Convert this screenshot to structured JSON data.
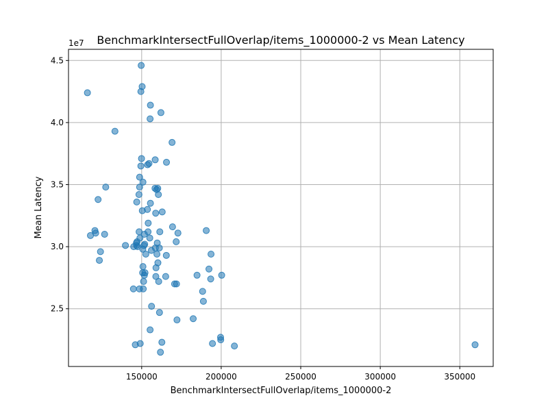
{
  "chart_data": {
    "type": "scatter",
    "title": "BenchmarkIntersectFullOverlap/items_1000000-2 vs Mean Latency",
    "xlabel": "BenchmarkIntersectFullOverlap/items_1000000-2",
    "ylabel": "Mean Latency",
    "y_offset_label": "1e7",
    "xlim": [
      104000,
      371000
    ],
    "ylim": [
      20350000,
      45900000
    ],
    "x_ticks": [
      150000,
      200000,
      250000,
      300000,
      350000
    ],
    "x_tick_labels": [
      "150000",
      "200000",
      "250000",
      "300000",
      "350000"
    ],
    "y_ticks": [
      25000000,
      30000000,
      35000000,
      40000000,
      45000000
    ],
    "y_tick_labels": [
      "2.5",
      "3.0",
      "3.5",
      "4.0",
      "4.5"
    ],
    "grid": true,
    "marker_color": "#1f77b4",
    "marker_alpha": 0.55,
    "points": [
      [
        149700,
        44600000
      ],
      [
        150300,
        42900000
      ],
      [
        115900,
        42400000
      ],
      [
        149500,
        42500000
      ],
      [
        155500,
        41400000
      ],
      [
        162100,
        40800000
      ],
      [
        155300,
        40300000
      ],
      [
        133200,
        39300000
      ],
      [
        169100,
        38400000
      ],
      [
        149900,
        37100000
      ],
      [
        158500,
        37000000
      ],
      [
        154600,
        36700000
      ],
      [
        165600,
        36800000
      ],
      [
        153700,
        36600000
      ],
      [
        149500,
        36500000
      ],
      [
        148700,
        35600000
      ],
      [
        150800,
        35200000
      ],
      [
        148700,
        34800000
      ],
      [
        127400,
        34800000
      ],
      [
        158400,
        34700000
      ],
      [
        160100,
        34700000
      ],
      [
        159400,
        34600000
      ],
      [
        148300,
        34200000
      ],
      [
        160500,
        34200000
      ],
      [
        122600,
        33800000
      ],
      [
        146900,
        33600000
      ],
      [
        155500,
        33500000
      ],
      [
        153600,
        33000000
      ],
      [
        150400,
        32900000
      ],
      [
        162900,
        32800000
      ],
      [
        158800,
        32700000
      ],
      [
        154100,
        31900000
      ],
      [
        169400,
        31600000
      ],
      [
        120600,
        31300000
      ],
      [
        190600,
        31300000
      ],
      [
        121100,
        31100000
      ],
      [
        148400,
        31200000
      ],
      [
        154000,
        31200000
      ],
      [
        161400,
        31200000
      ],
      [
        172800,
        31100000
      ],
      [
        117800,
        30900000
      ],
      [
        126700,
        31000000
      ],
      [
        151700,
        31000000
      ],
      [
        148900,
        30700000
      ],
      [
        155100,
        30700000
      ],
      [
        147100,
        30400000
      ],
      [
        146700,
        30300000
      ],
      [
        171700,
        30400000
      ],
      [
        159800,
        30300000
      ],
      [
        146800,
        30100000
      ],
      [
        151900,
        30200000
      ],
      [
        151400,
        30100000
      ],
      [
        139800,
        30100000
      ],
      [
        145000,
        30000000
      ],
      [
        147400,
        30000000
      ],
      [
        150700,
        29800000
      ],
      [
        158600,
        29900000
      ],
      [
        161100,
        29900000
      ],
      [
        156100,
        29700000
      ],
      [
        124100,
        29600000
      ],
      [
        193600,
        29400000
      ],
      [
        152600,
        29400000
      ],
      [
        159600,
        29400000
      ],
      [
        165500,
        29300000
      ],
      [
        123400,
        28900000
      ],
      [
        160200,
        28700000
      ],
      [
        150800,
        28400000
      ],
      [
        159000,
        28300000
      ],
      [
        192300,
        28200000
      ],
      [
        150600,
        27900000
      ],
      [
        152100,
        27900000
      ],
      [
        151700,
        27700000
      ],
      [
        158900,
        27600000
      ],
      [
        165100,
        27600000
      ],
      [
        184800,
        27700000
      ],
      [
        200300,
        27700000
      ],
      [
        193400,
        27400000
      ],
      [
        151200,
        27200000
      ],
      [
        160700,
        27200000
      ],
      [
        170700,
        27000000
      ],
      [
        171900,
        27000000
      ],
      [
        144800,
        26600000
      ],
      [
        148600,
        26600000
      ],
      [
        151000,
        26600000
      ],
      [
        188300,
        26400000
      ],
      [
        188800,
        25600000
      ],
      [
        156200,
        25200000
      ],
      [
        161200,
        24700000
      ],
      [
        172200,
        24100000
      ],
      [
        182400,
        24200000
      ],
      [
        155300,
        23300000
      ],
      [
        199600,
        22700000
      ],
      [
        199700,
        22500000
      ],
      [
        162700,
        22300000
      ],
      [
        194500,
        22200000
      ],
      [
        149100,
        22200000
      ],
      [
        146000,
        22100000
      ],
      [
        208300,
        22000000
      ],
      [
        359600,
        22100000
      ],
      [
        161800,
        21500000
      ]
    ]
  }
}
